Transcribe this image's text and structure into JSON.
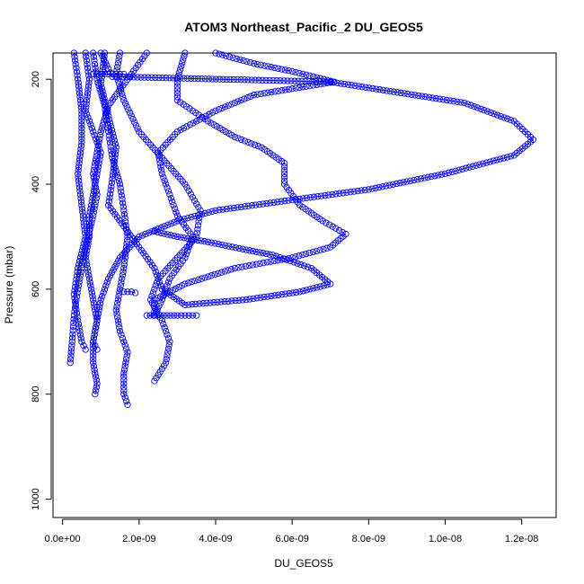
{
  "chart_data": {
    "type": "scatter",
    "title": "ATOM3 Northeast_Pacific_2 DU_GEOS5",
    "xlabel": "DU_GEOS5",
    "ylabel": "Pressure (mbar)",
    "xlim": [
      -2.5e-10,
      1.29e-08
    ],
    "ylim": [
      1035,
      150
    ],
    "y_reversed": true,
    "grid": false,
    "marker": "open-circle",
    "color": "#0000ff",
    "x_ticks": [
      {
        "value": 0,
        "label": "0.0e+00"
      },
      {
        "value": 2e-09,
        "label": "2.0e-09"
      },
      {
        "value": 4e-09,
        "label": "4.0e-09"
      },
      {
        "value": 6e-09,
        "label": "6.0e-09"
      },
      {
        "value": 8e-09,
        "label": "8.0e-09"
      },
      {
        "value": 1e-08,
        "label": "1.0e-08"
      },
      {
        "value": 1.2e-08,
        "label": "1.2e-08"
      }
    ],
    "y_ticks": [
      {
        "value": 200,
        "label": "200"
      },
      {
        "value": 400,
        "label": "400"
      },
      {
        "value": 600,
        "label": "600"
      },
      {
        "value": 800,
        "label": "800"
      },
      {
        "value": 1000,
        "label": "1000"
      }
    ],
    "series": [
      {
        "style": "dotdash",
        "points": [
          [
            2.2e-09,
            150
          ],
          [
            1.8e-09,
            190
          ],
          [
            1.2e-09,
            250
          ],
          [
            1e-09,
            300
          ],
          [
            9e-10,
            340
          ],
          [
            8e-10,
            380
          ],
          [
            9e-10,
            420
          ],
          [
            8e-10,
            460
          ],
          [
            6e-10,
            520
          ],
          [
            5e-10,
            560
          ],
          [
            4e-10,
            600
          ],
          [
            3e-10,
            650
          ],
          [
            2.5e-10,
            700
          ],
          [
            2e-10,
            740
          ]
        ]
      },
      {
        "style": "solid",
        "points": [
          [
            6e-10,
            150
          ],
          [
            7e-10,
            200
          ],
          [
            6e-10,
            260
          ],
          [
            8e-10,
            300
          ],
          [
            1e-09,
            340
          ],
          [
            9e-10,
            380
          ],
          [
            8e-10,
            420
          ],
          [
            7e-10,
            460
          ],
          [
            7e-10,
            500
          ],
          [
            6e-10,
            540
          ],
          [
            7e-10,
            580
          ],
          [
            8e-10,
            620
          ],
          [
            9e-10,
            660
          ],
          [
            8e-10,
            700
          ],
          [
            8e-10,
            740
          ],
          [
            9e-10,
            780
          ],
          [
            8.5e-10,
            800
          ]
        ]
      },
      {
        "style": "dashed",
        "points": [
          [
            8e-10,
            150
          ],
          [
            9e-10,
            200
          ],
          [
            1.1e-09,
            250
          ],
          [
            1.2e-09,
            300
          ],
          [
            1.3e-09,
            350
          ],
          [
            1.5e-09,
            400
          ],
          [
            1.6e-09,
            450
          ],
          [
            1.7e-09,
            500
          ],
          [
            1.6e-09,
            560
          ],
          [
            1.5e-09,
            600
          ],
          [
            1.4e-09,
            640
          ],
          [
            1.5e-09,
            680
          ],
          [
            1.7e-09,
            720
          ],
          [
            1.6e-09,
            760
          ],
          [
            1.6e-09,
            800
          ],
          [
            1.7e-09,
            820
          ]
        ]
      },
      {
        "style": "dotted",
        "points": [
          [
            1.5e-09,
            150
          ],
          [
            1.4e-09,
            190
          ],
          [
            1.6e-09,
            240
          ],
          [
            2e-09,
            300
          ],
          [
            2.6e-09,
            350
          ],
          [
            3.2e-09,
            400
          ],
          [
            3.6e-09,
            450
          ],
          [
            3.5e-09,
            500
          ],
          [
            3e-09,
            540
          ],
          [
            2.5e-09,
            580
          ],
          [
            2.3e-09,
            620
          ],
          [
            2.6e-09,
            660
          ],
          [
            2.8e-09,
            700
          ],
          [
            2.7e-09,
            740
          ],
          [
            2.4e-09,
            775
          ]
        ]
      },
      {
        "style": "solid",
        "points": [
          [
            1e-09,
            150
          ],
          [
            1.2e-09,
            180
          ],
          [
            1.3e-09,
            195
          ],
          [
            7e-09,
            205
          ],
          [
            1.05e-08,
            245
          ],
          [
            1.18e-08,
            280
          ],
          [
            1.23e-08,
            315
          ],
          [
            1.18e-08,
            345
          ],
          [
            1e-08,
            380
          ],
          [
            8e-09,
            410
          ],
          [
            6e-09,
            430
          ],
          [
            4e-09,
            450
          ],
          [
            3e-09,
            470
          ],
          [
            2e-09,
            500
          ],
          [
            1.5e-09,
            540
          ],
          [
            1.2e-09,
            580
          ],
          [
            1e-09,
            620
          ],
          [
            9e-10,
            660
          ],
          [
            8e-10,
            700
          ],
          [
            9e-10,
            715
          ]
        ]
      },
      {
        "style": "dotdash",
        "points": [
          [
            4e-09,
            150
          ],
          [
            5e-09,
            170
          ],
          [
            6e-09,
            185
          ],
          [
            7.1e-09,
            205
          ],
          [
            5e-09,
            230
          ],
          [
            4e-09,
            260
          ],
          [
            3e-09,
            300
          ],
          [
            2.5e-09,
            340
          ],
          [
            2.6e-09,
            380
          ],
          [
            2.8e-09,
            420
          ],
          [
            3e-09,
            460
          ],
          [
            3.4e-09,
            500
          ],
          [
            3.2e-09,
            540
          ],
          [
            2.8e-09,
            580
          ],
          [
            2.6e-09,
            620
          ],
          [
            2.4e-09,
            650
          ]
        ]
      },
      {
        "style": "dotted",
        "points": [
          [
            3.2e-09,
            150
          ],
          [
            3e-09,
            200
          ],
          [
            3e-09,
            240
          ],
          [
            3.8e-09,
            280
          ],
          [
            4.5e-09,
            310
          ],
          [
            5.2e-09,
            330
          ],
          [
            5.8e-09,
            360
          ],
          [
            5.8e-09,
            400
          ],
          [
            6.2e-09,
            440
          ],
          [
            6.8e-09,
            470
          ],
          [
            7.4e-09,
            495
          ],
          [
            7e-09,
            520
          ],
          [
            6e-09,
            540
          ],
          [
            4.5e-09,
            560
          ],
          [
            3.2e-09,
            590
          ],
          [
            2.4e-09,
            620
          ],
          [
            2.4e-09,
            650
          ]
        ]
      },
      {
        "style": "solid",
        "points": [
          [
            3e-10,
            150
          ],
          [
            4e-10,
            200
          ],
          [
            5e-10,
            260
          ],
          [
            5e-10,
            320
          ],
          [
            4e-10,
            380
          ],
          [
            5e-10,
            440
          ],
          [
            6e-10,
            500
          ],
          [
            4e-10,
            560
          ],
          [
            3e-10,
            610
          ],
          [
            4e-10,
            660
          ],
          [
            5e-10,
            700
          ],
          [
            6e-10,
            715
          ]
        ]
      },
      {
        "style": "solid",
        "points": [
          [
            1.1e-09,
            150
          ],
          [
            1e-09,
            210
          ],
          [
            1.2e-09,
            270
          ],
          [
            1.4e-09,
            330
          ],
          [
            1.3e-09,
            390
          ],
          [
            1.2e-09,
            440
          ],
          [
            1.6e-09,
            480
          ],
          [
            2e-09,
            520
          ],
          [
            2.4e-09,
            560
          ],
          [
            2.6e-09,
            600
          ],
          [
            3.2e-09,
            630
          ],
          [
            4.8e-09,
            620
          ],
          [
            6.2e-09,
            605
          ],
          [
            7e-09,
            590
          ],
          [
            6.5e-09,
            560
          ],
          [
            5.5e-09,
            535
          ],
          [
            4.8e-09,
            525
          ],
          [
            3.8e-09,
            510
          ],
          [
            3e-09,
            500
          ],
          [
            2.4e-09,
            490
          ]
        ]
      },
      {
        "style": "solid",
        "points": [
          [
            1.6e-09,
            190
          ],
          [
            1e-09,
            190
          ],
          [
            8e-10,
            190
          ]
        ]
      },
      {
        "style": "solid",
        "points": [
          [
            2.2e-09,
            650
          ],
          [
            3e-09,
            650
          ],
          [
            3.5e-09,
            650
          ]
        ]
      },
      {
        "style": "solid",
        "points": [
          [
            1.6e-09,
            605
          ],
          [
            1.8e-09,
            605
          ],
          [
            1.9e-09,
            607
          ]
        ]
      }
    ]
  }
}
